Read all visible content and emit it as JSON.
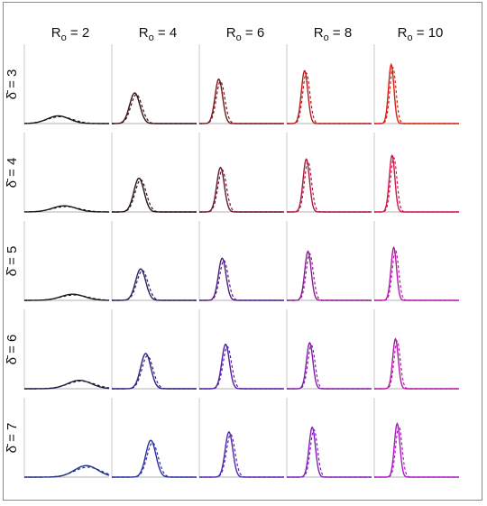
{
  "chart_data": {
    "type": "line",
    "layout": "small-multiples grid",
    "title": "",
    "columns": {
      "labels": [
        {
          "base": "R",
          "sub": "o",
          "rest": " = 2"
        },
        {
          "base": "R",
          "sub": "o",
          "rest": " = 4"
        },
        {
          "base": "R",
          "sub": "o",
          "rest": " = 6"
        },
        {
          "base": "R",
          "sub": "o",
          "rest": " = 8"
        },
        {
          "base": "R",
          "sub": "o",
          "rest": " = 10"
        }
      ],
      "values": [
        2,
        4,
        6,
        8,
        10
      ]
    },
    "rows": {
      "labels": [
        "δ̄ = 3",
        "δ̄ = 4",
        "δ̄ = 5",
        "δ̄ = 6",
        "δ̄ = 7"
      ],
      "values": [
        3,
        4,
        5,
        6,
        7
      ]
    },
    "x_range": [
      0,
      1
    ],
    "y_range": [
      0,
      1
    ],
    "grid": false,
    "legend": "none",
    "series_styles": [
      "solid",
      "dashed"
    ],
    "line_colors": [
      [
        "#1a1a1a",
        "#3a1010",
        "#7a1818",
        "#b81c1c",
        "#d81e10"
      ],
      [
        "#1a1a1a",
        "#2a1418",
        "#6a1830",
        "#a81c40",
        "#d01848"
      ],
      [
        "#1a1a22",
        "#2a2060",
        "#502080",
        "#8a2090",
        "#b01ca8"
      ],
      [
        "#1a1e40",
        "#2a2480",
        "#5020a0",
        "#8020a8",
        "#b01ca8"
      ],
      [
        "#203080",
        "#2a30a0",
        "#5028b0",
        "#8020b8",
        "#a81cc0"
      ]
    ],
    "panels": [
      [
        {
          "solid": {
            "center": 0.4,
            "width": 0.13,
            "peak": 0.1
          },
          "dashed": {
            "center": 0.42,
            "width": 0.15,
            "peak": 0.09
          }
        },
        {
          "solid": {
            "center": 0.27,
            "width": 0.06,
            "peak": 0.4
          },
          "dashed": {
            "center": 0.29,
            "width": 0.065,
            "peak": 0.38
          }
        },
        {
          "solid": {
            "center": 0.23,
            "width": 0.045,
            "peak": 0.58
          },
          "dashed": {
            "center": 0.25,
            "width": 0.05,
            "peak": 0.55
          }
        },
        {
          "solid": {
            "center": 0.21,
            "width": 0.038,
            "peak": 0.69
          },
          "dashed": {
            "center": 0.23,
            "width": 0.042,
            "peak": 0.66
          }
        },
        {
          "solid": {
            "center": 0.2,
            "width": 0.032,
            "peak": 0.77
          },
          "dashed": {
            "center": 0.22,
            "width": 0.036,
            "peak": 0.73
          }
        }
      ],
      [
        {
          "solid": {
            "center": 0.47,
            "width": 0.14,
            "peak": 0.08
          },
          "dashed": {
            "center": 0.49,
            "width": 0.16,
            "peak": 0.07
          }
        },
        {
          "solid": {
            "center": 0.32,
            "width": 0.06,
            "peak": 0.44
          },
          "dashed": {
            "center": 0.34,
            "width": 0.065,
            "peak": 0.42
          }
        },
        {
          "solid": {
            "center": 0.25,
            "width": 0.045,
            "peak": 0.58
          },
          "dashed": {
            "center": 0.27,
            "width": 0.05,
            "peak": 0.55
          }
        },
        {
          "solid": {
            "center": 0.23,
            "width": 0.038,
            "peak": 0.69
          },
          "dashed": {
            "center": 0.25,
            "width": 0.042,
            "peak": 0.66
          }
        },
        {
          "solid": {
            "center": 0.21,
            "width": 0.033,
            "peak": 0.74
          },
          "dashed": {
            "center": 0.23,
            "width": 0.037,
            "peak": 0.71
          }
        }
      ],
      [
        {
          "solid": {
            "center": 0.57,
            "width": 0.14,
            "peak": 0.08
          },
          "dashed": {
            "center": 0.59,
            "width": 0.16,
            "peak": 0.07
          }
        },
        {
          "solid": {
            "center": 0.34,
            "width": 0.06,
            "peak": 0.41
          },
          "dashed": {
            "center": 0.36,
            "width": 0.065,
            "peak": 0.39
          }
        },
        {
          "solid": {
            "center": 0.27,
            "width": 0.045,
            "peak": 0.55
          },
          "dashed": {
            "center": 0.29,
            "width": 0.05,
            "peak": 0.52
          }
        },
        {
          "solid": {
            "center": 0.25,
            "width": 0.038,
            "peak": 0.64
          },
          "dashed": {
            "center": 0.27,
            "width": 0.042,
            "peak": 0.61
          }
        },
        {
          "solid": {
            "center": 0.23,
            "width": 0.033,
            "peak": 0.69
          },
          "dashed": {
            "center": 0.25,
            "width": 0.037,
            "peak": 0.66
          }
        }
      ],
      [
        {
          "solid": {
            "center": 0.65,
            "width": 0.14,
            "peak": 0.11
          },
          "dashed": {
            "center": 0.67,
            "width": 0.16,
            "peak": 0.1
          }
        },
        {
          "solid": {
            "center": 0.4,
            "width": 0.06,
            "peak": 0.46
          },
          "dashed": {
            "center": 0.42,
            "width": 0.065,
            "peak": 0.43
          }
        },
        {
          "solid": {
            "center": 0.31,
            "width": 0.045,
            "peak": 0.58
          },
          "dashed": {
            "center": 0.33,
            "width": 0.05,
            "peak": 0.55
          }
        },
        {
          "solid": {
            "center": 0.27,
            "width": 0.038,
            "peak": 0.6
          },
          "dashed": {
            "center": 0.29,
            "width": 0.042,
            "peak": 0.57
          }
        },
        {
          "solid": {
            "center": 0.25,
            "width": 0.033,
            "peak": 0.65
          },
          "dashed": {
            "center": 0.27,
            "width": 0.037,
            "peak": 0.62
          }
        }
      ],
      [
        {
          "solid": {
            "center": 0.73,
            "width": 0.14,
            "peak": 0.15
          },
          "dashed": {
            "center": 0.75,
            "width": 0.16,
            "peak": 0.13
          }
        },
        {
          "solid": {
            "center": 0.46,
            "width": 0.06,
            "peak": 0.48
          },
          "dashed": {
            "center": 0.48,
            "width": 0.065,
            "peak": 0.45
          }
        },
        {
          "solid": {
            "center": 0.35,
            "width": 0.045,
            "peak": 0.59
          },
          "dashed": {
            "center": 0.37,
            "width": 0.05,
            "peak": 0.56
          }
        },
        {
          "solid": {
            "center": 0.3,
            "width": 0.038,
            "peak": 0.65
          },
          "dashed": {
            "center": 0.32,
            "width": 0.042,
            "peak": 0.62
          }
        },
        {
          "solid": {
            "center": 0.27,
            "width": 0.033,
            "peak": 0.7
          },
          "dashed": {
            "center": 0.29,
            "width": 0.037,
            "peak": 0.67
          }
        }
      ]
    ]
  }
}
